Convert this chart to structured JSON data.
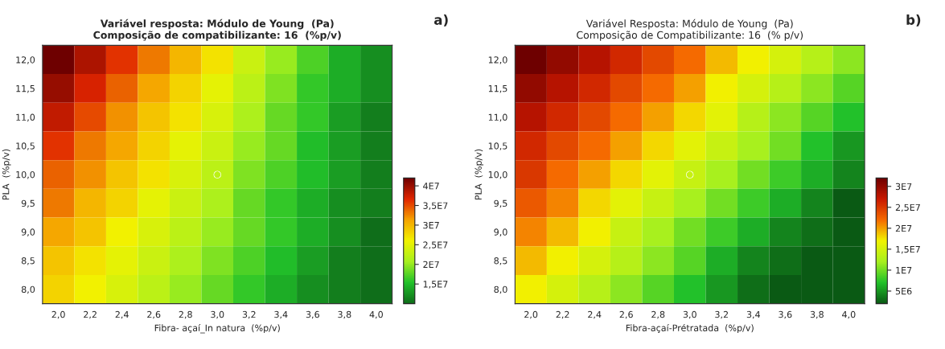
{
  "chart_data": [
    {
      "type": "heatmap",
      "title": "Variável resposta: Módulo de Young  (Pa)\nComposição de compatibilizante: 16  (%p/v)",
      "xlabel": "Fibra- açaí_In natura  (%p/v)",
      "ylabel": "PLA  (%p/v)",
      "annotations": [
        "a)",
        "○"
      ],
      "categories": [
        "2,0",
        "2,2",
        "2,4",
        "2,6",
        "2,8",
        "3,0",
        "3,2",
        "3,4",
        "3,6",
        "3,8",
        "4,0"
      ],
      "y_categories": [
        "12,0",
        "11,5",
        "11,0",
        "10,5",
        "10,0",
        "9,5",
        "9,0",
        "8,5",
        "8,0"
      ],
      "cells": [
        [
          42000000.0,
          39000000.0,
          36000000.0,
          33000000.0,
          30000000.0,
          27000000.0,
          23000000.0,
          20000000.0,
          17000000.0,
          14000000.0,
          12000000.0
        ],
        [
          40000000.0,
          37000000.0,
          34000000.0,
          31000000.0,
          28000000.0,
          25000000.0,
          22000000.0,
          19000000.0,
          16000000.0,
          14000000.0,
          12000000.0
        ],
        [
          38000000.0,
          35000000.0,
          32000000.0,
          29000000.0,
          27000000.0,
          24000000.0,
          21000000.0,
          18000000.0,
          16000000.0,
          13000000.0,
          11000000.0
        ],
        [
          36000000.0,
          33000000.0,
          31000000.0,
          28000000.0,
          25000000.0,
          23000000.0,
          20000000.0,
          18000000.0,
          15000000.0,
          13000000.0,
          11000000.0
        ],
        [
          34000000.0,
          32000000.0,
          29000000.0,
          27000000.0,
          24000000.0,
          22000000.0,
          19000000.0,
          17000000.0,
          15000000.0,
          13000000.0,
          11000000.0
        ],
        [
          33000000.0,
          30000000.0,
          28000000.0,
          25000000.0,
          23000000.0,
          21000000.0,
          18000000.0,
          16000000.0,
          14000000.0,
          12000000.0,
          11000000.0
        ],
        [
          31000000.0,
          29000000.0,
          26000000.0,
          24000000.0,
          22000000.0,
          20000000.0,
          18000000.0,
          16000000.0,
          14000000.0,
          12000000.0,
          10000000.0
        ],
        [
          29000000.0,
          27000000.0,
          25000000.0,
          23000000.0,
          21000000.0,
          19000000.0,
          17000000.0,
          15000000.0,
          13000000.0,
          11000000.0,
          10000000.0
        ],
        [
          28000000.0,
          26000000.0,
          24000000.0,
          22000000.0,
          20000000.0,
          18000000.0,
          16000000.0,
          14000000.0,
          12000000.0,
          11000000.0,
          10000000.0
        ]
      ],
      "clim": [
        10000000.0,
        42000000.0
      ],
      "cticks": [
        {
          "value": 40000000.0,
          "label": "4E7"
        },
        {
          "value": 35000000.0,
          "label": "3,5E7"
        },
        {
          "value": 30000000.0,
          "label": "3E7"
        },
        {
          "value": 25000000.0,
          "label": "2,5E7"
        },
        {
          "value": 20000000.0,
          "label": "2E7"
        },
        {
          "value": 15000000.0,
          "label": "1,5E7"
        }
      ],
      "colors": [
        "#0f6e1a",
        "#22c22a",
        "#a8f01e",
        "#f2f200",
        "#f5a300",
        "#e02500",
        "#6e0000"
      ]
    },
    {
      "type": "heatmap",
      "title": "Variável Resposta: Módulo de Young  (Pa)\nComposição de Compatibilizante: 16  (% p/v)",
      "xlabel": "Fibra-açaí-Prétratada  (%p/v)",
      "ylabel": "PLA  (%p/v)",
      "annotations": [
        "b)",
        "○"
      ],
      "categories": [
        "2,0",
        "2,2",
        "2,4",
        "2,6",
        "2,8",
        "3,0",
        "3,2",
        "3,4",
        "3,6",
        "3,8",
        "4,0"
      ],
      "y_categories": [
        "12,0",
        "11,5",
        "11,0",
        "10,5",
        "10,0",
        "9,5",
        "9,0",
        "8,5",
        "8,0"
      ],
      "cells": [
        [
          32000000.0,
          30000000.0,
          28000000.0,
          26000000.0,
          24000000.0,
          22000000.0,
          19000000.0,
          17000000.0,
          15000000.0,
          13000000.0,
          11000000.0
        ],
        [
          30000000.0,
          28000000.0,
          26000000.0,
          24000000.0,
          22000000.0,
          20000000.0,
          17000000.0,
          15000000.0,
          13000000.0,
          11000000.0,
          9000000.0
        ],
        [
          28000000.0,
          26000000.0,
          24000000.0,
          22000000.0,
          20000000.0,
          18000000.0,
          16000000.0,
          13000000.0,
          11000000.0,
          9000000.0,
          7000000.0
        ],
        [
          26000000.0,
          24000000.0,
          22000000.0,
          20000000.0,
          18000000.0,
          16000000.0,
          14000000.0,
          12000000.0,
          10000000.0,
          7000000.0,
          5000000.0
        ],
        [
          25000000.0,
          22000000.0,
          20000000.0,
          18000000.0,
          16000000.0,
          14000000.0,
          12000000.0,
          10000000.0,
          8000000.0,
          6000000.0,
          4000000.0
        ],
        [
          23000000.0,
          21000000.0,
          18000000.0,
          16000000.0,
          14000000.0,
          12000000.0,
          10000000.0,
          8000000.0,
          6000000.0,
          4000000.0,
          2000000.0
        ],
        [
          21000000.0,
          19000000.0,
          17000000.0,
          14000000.0,
          12000000.0,
          10000000.0,
          8000000.0,
          6000000.0,
          4000000.0,
          3000000.0,
          2000000.0
        ],
        [
          19000000.0,
          17000000.0,
          15000000.0,
          13000000.0,
          11000000.0,
          9000000.0,
          6000000.0,
          4000000.0,
          3000000.0,
          2000000.0,
          2000000.0
        ],
        [
          17000000.0,
          15000000.0,
          13000000.0,
          11000000.0,
          9000000.0,
          7000000.0,
          5000000.0,
          3000000.0,
          2000000.0,
          2000000.0,
          2000000.0
        ]
      ],
      "clim": [
        2000000.0,
        32000000.0
      ],
      "cticks": [
        {
          "value": 30000000.0,
          "label": "3E7"
        },
        {
          "value": 25000000.0,
          "label": "2,5E7"
        },
        {
          "value": 20000000.0,
          "label": "2E7"
        },
        {
          "value": 15000000.0,
          "label": "1,5E7"
        },
        {
          "value": 10000000.0,
          "label": "1E7"
        },
        {
          "value": 5000000.0,
          "label": "5E6"
        }
      ],
      "colors": [
        "#0a5a14",
        "#22c22a",
        "#a8f01e",
        "#f2f200",
        "#f56a00",
        "#c81800",
        "#6e0000"
      ]
    }
  ]
}
